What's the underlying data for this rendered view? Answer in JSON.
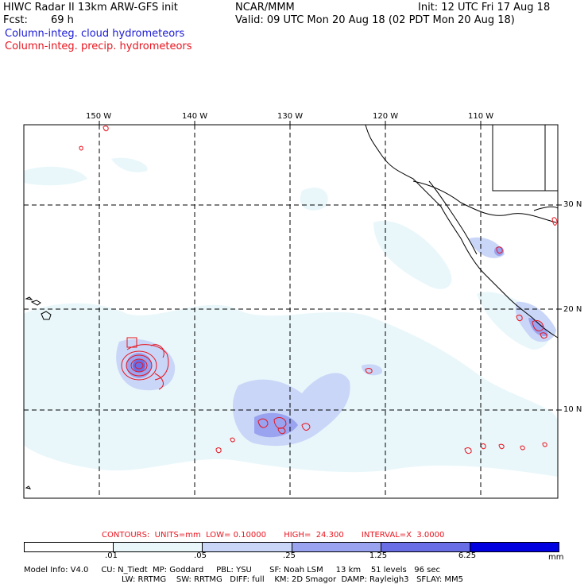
{
  "header": {
    "title": "HIWC Radar II 13km ARW-GFS init",
    "org": "NCAR/MMM",
    "fcst_label": "Fcst:",
    "fcst_value": "69 h",
    "init": "Init: 12 UTC Fri 17 Aug 18",
    "valid": "Valid: 09 UTC Mon 20 Aug 18 (02 PDT Mon 20 Aug 18)",
    "field1": "Column-integ. cloud hydrometeors",
    "field2": "Column-integ. precip. hydrometeors"
  },
  "map": {
    "lon_labels": [
      "150 W",
      "140 W",
      "130 W",
      "120 W",
      "110 W"
    ],
    "lat_labels": [
      "30 N",
      "20 N",
      "10 N"
    ],
    "shade_colors": [
      "#e9f7fb",
      "#c9d6f8",
      "#9aa3ef",
      "#6a6ee6",
      "#3a3ae0",
      "#0000e0"
    ],
    "contour_color": "#e8141e",
    "grid_color": "#000000"
  },
  "contours": {
    "line": "CONTOURS:  UNITS=mm  LOW= 0.10000       HIGH=  24.300       INTERVAL=X  3.0000"
  },
  "colorbar": {
    "ticks": [
      ".01",
      ".05",
      ".25",
      "1.25",
      "6.25"
    ],
    "units": "mm",
    "colors": [
      "#ffffff",
      "#e9f7fb",
      "#c9d6f8",
      "#9aa3ef",
      "#6a6ee6",
      "#0000e0"
    ]
  },
  "footer": {
    "line1": "Model Info: V4.0     CU: N_Tiedt  MP: Goddard     PBL: YSU       SF: Noah LSM     13 km    51 levels   96 sec",
    "line2": "LW: RRTMG    SW: RRTMG   DIFF: full    KM: 2D Smagor  DAMP: Rayleigh3   SFLAY: MM5"
  }
}
